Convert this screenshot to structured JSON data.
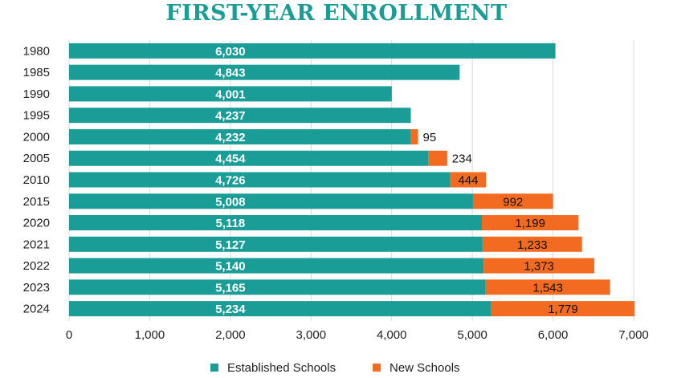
{
  "chart_data": {
    "type": "bar",
    "orientation": "horizontal",
    "stacked": true,
    "title": "FIRST-YEAR ENROLLMENT",
    "categories": [
      "1980",
      "1985",
      "1990",
      "1995",
      "2000",
      "2005",
      "2010",
      "2015",
      "2020",
      "2021",
      "2022",
      "2023",
      "2024"
    ],
    "series": [
      {
        "name": "Established Schools",
        "color": "#1a9d96",
        "values": [
          6030,
          4843,
          4001,
          4237,
          4232,
          4454,
          4726,
          5008,
          5118,
          5127,
          5140,
          5165,
          5234
        ],
        "labels": [
          "6,030",
          "4,843",
          "4,001",
          "4,237",
          "4,232",
          "4,454",
          "4,726",
          "5,008",
          "5,118",
          "5,127",
          "5,140",
          "5,165",
          "5,234"
        ]
      },
      {
        "name": "New Schools",
        "color": "#f26b21",
        "values": [
          0,
          0,
          0,
          0,
          95,
          234,
          444,
          992,
          1199,
          1233,
          1373,
          1543,
          1779
        ],
        "labels": [
          "",
          "",
          "",
          "",
          "95",
          "234",
          "444",
          "992",
          "1,199",
          "1,233",
          "1,373",
          "1,543",
          "1,779"
        ]
      }
    ],
    "xlim": [
      0,
      7000
    ],
    "xticks": [
      0,
      1000,
      2000,
      3000,
      4000,
      5000,
      6000,
      7000
    ],
    "xtick_labels": [
      "0",
      "1,000",
      "2,000",
      "3,000",
      "4,000",
      "5,000",
      "6,000",
      "7,000"
    ],
    "grid": "vertical",
    "legend_position": "bottom"
  }
}
